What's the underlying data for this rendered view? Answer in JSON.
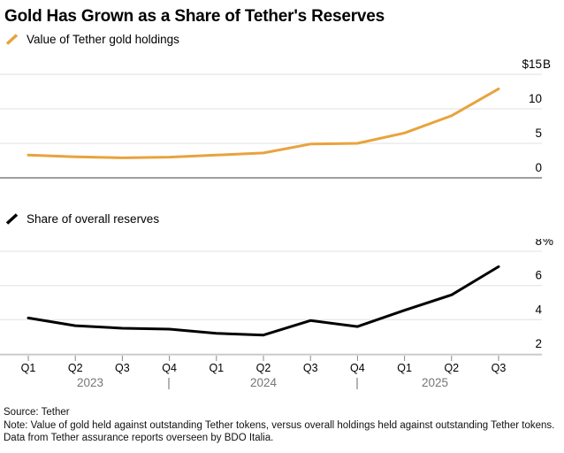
{
  "title": "Gold Has Grown as a Share of Tether's Reserves",
  "chart_data": [
    {
      "type": "line",
      "name": "gold-holdings",
      "legend": "Value of Tether gold holdings",
      "color": "#E8A33D",
      "unit": "$B",
      "categories": [
        "Q1 2023",
        "Q2 2023",
        "Q3 2023",
        "Q4 2023",
        "Q1 2024",
        "Q2 2024",
        "Q3 2024",
        "Q4 2024",
        "Q1 2025",
        "Q2 2025",
        "Q3 2025"
      ],
      "values": [
        3.3,
        3.05,
        2.9,
        3.0,
        3.3,
        3.6,
        4.9,
        5.0,
        6.5,
        9.0,
        12.9
      ],
      "ylim": [
        0,
        15
      ],
      "yticks": [
        0,
        5,
        10,
        15
      ],
      "ytick_labels": [
        "0",
        "5",
        "10",
        "$15B"
      ],
      "grid": "horizontal",
      "legend_position": "top-left",
      "baseline_value": 0
    },
    {
      "type": "line",
      "name": "reserve-share",
      "legend": "Share of overall reserves",
      "color": "#000000",
      "unit": "%",
      "categories": [
        "Q1 2023",
        "Q2 2023",
        "Q3 2023",
        "Q4 2023",
        "Q1 2024",
        "Q2 2024",
        "Q3 2024",
        "Q4 2024",
        "Q1 2025",
        "Q2 2025",
        "Q3 2025"
      ],
      "values": [
        4.1,
        3.65,
        3.5,
        3.45,
        3.2,
        3.1,
        3.95,
        3.6,
        4.55,
        5.45,
        7.1
      ],
      "ylim": [
        2,
        8
      ],
      "yticks": [
        2,
        4,
        6,
        8
      ],
      "ytick_labels": [
        "2",
        "4",
        "6",
        "8%"
      ],
      "grid": "horizontal",
      "legend_position": "top-left",
      "baseline_value": null
    }
  ],
  "x_axis": {
    "quarter_labels": [
      "Q1",
      "Q2",
      "Q3",
      "Q4",
      "Q1",
      "Q2",
      "Q3",
      "Q4",
      "Q1",
      "Q2",
      "Q3"
    ],
    "year_labels": [
      "2023",
      "2024",
      "2025"
    ],
    "year_separator": "|"
  },
  "footer": {
    "source": "Source: Tether",
    "note": "Note: Value of gold held against outstanding Tether tokens, versus overall holdings held against outstanding Tether tokens. Data from Tether assurance reports overseen by BDO Italia."
  }
}
